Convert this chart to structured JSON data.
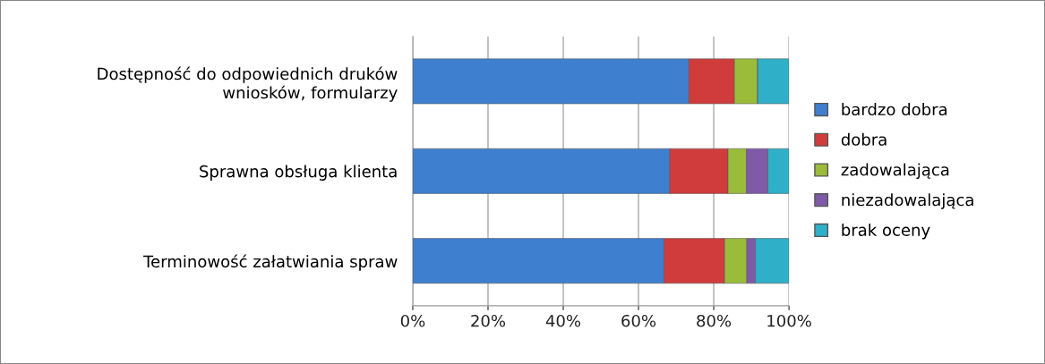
{
  "chart_data": {
    "type": "bar",
    "orientation": "horizontal",
    "stacked": true,
    "categories": [
      "Dostępność do odpowiednich druków\nwniosków, formularzy",
      "Sprawna obsługa klienta",
      "Terminowość załatwiania spraw"
    ],
    "series": [
      {
        "name": "bardzo dobra",
        "color": "#3f7fcf",
        "values": [
          73.4,
          68.3,
          66.8
        ]
      },
      {
        "name": "dobra",
        "color": "#d03c3c",
        "values": [
          12.1,
          15.5,
          16.1
        ]
      },
      {
        "name": "zadowalająca",
        "color": "#9bbb3b",
        "values": [
          6.2,
          4.9,
          5.9
        ]
      },
      {
        "name": "niezadowalająca",
        "color": "#7e5aa8",
        "values": [
          0,
          5.7,
          2.3
        ]
      },
      {
        "name": "brak oceny",
        "color": "#2fb0c8",
        "values": [
          8.3,
          5.6,
          8.9
        ]
      }
    ],
    "xlim": [
      0,
      100
    ],
    "xticks": [
      {
        "value": 0,
        "label": "0%"
      },
      {
        "value": 20,
        "label": "20%"
      },
      {
        "value": 40,
        "label": "40%"
      },
      {
        "value": 60,
        "label": "60%"
      },
      {
        "value": 80,
        "label": "80%"
      },
      {
        "value": 100,
        "label": "100%"
      }
    ],
    "grid": "x",
    "legend": "right"
  }
}
